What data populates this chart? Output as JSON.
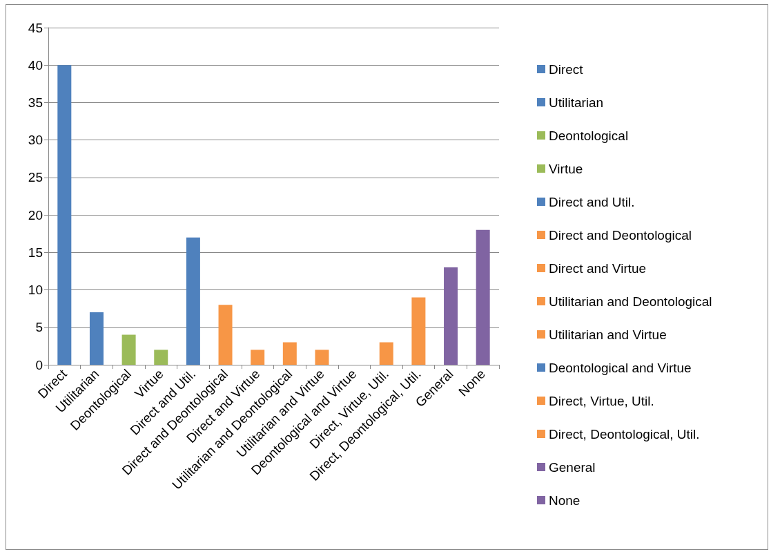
{
  "chart_data": {
    "type": "bar",
    "categories": [
      "Direct",
      "Utilitarian",
      "Deontological",
      "Virtue",
      "Direct and Util.",
      "Direct and Deontological",
      "Direct and Virtue",
      "Utilitarian and Deontological",
      "Utilitarian and Virtue",
      "Deontological and Virtue",
      "Direct, Virtue, Util.",
      "Direct, Deontological, Util.",
      "General",
      "None"
    ],
    "series": [
      {
        "name": "Direct",
        "color": "#4f81bd",
        "values": [
          40,
          null,
          null,
          null,
          null,
          null,
          null,
          null,
          null,
          null,
          null,
          null,
          null,
          null
        ]
      },
      {
        "name": "Utilitarian",
        "color": "#4f81bd",
        "values": [
          null,
          7,
          null,
          null,
          null,
          null,
          null,
          null,
          null,
          null,
          null,
          null,
          null,
          null
        ]
      },
      {
        "name": "Deontological",
        "color": "#9bbb59",
        "values": [
          null,
          null,
          4,
          null,
          null,
          null,
          null,
          null,
          null,
          null,
          null,
          null,
          null,
          null
        ]
      },
      {
        "name": "Virtue",
        "color": "#9bbb59",
        "values": [
          null,
          null,
          null,
          2,
          null,
          null,
          null,
          null,
          null,
          null,
          null,
          null,
          null,
          null
        ]
      },
      {
        "name": "Direct and Util.",
        "color": "#4f81bd",
        "values": [
          null,
          null,
          null,
          null,
          17,
          null,
          null,
          null,
          null,
          null,
          null,
          null,
          null,
          null
        ]
      },
      {
        "name": "Direct and Deontological",
        "color": "#f79646",
        "values": [
          null,
          null,
          null,
          null,
          null,
          8,
          null,
          null,
          null,
          null,
          null,
          null,
          null,
          null
        ]
      },
      {
        "name": "Direct and Virtue",
        "color": "#f79646",
        "values": [
          null,
          null,
          null,
          null,
          null,
          null,
          2,
          null,
          null,
          null,
          null,
          null,
          null,
          null
        ]
      },
      {
        "name": "Utilitarian and Deontological",
        "color": "#f79646",
        "values": [
          null,
          null,
          null,
          null,
          null,
          null,
          null,
          3,
          null,
          null,
          null,
          null,
          null,
          null
        ]
      },
      {
        "name": "Utilitarian and Virtue",
        "color": "#f79646",
        "values": [
          null,
          null,
          null,
          null,
          null,
          null,
          null,
          null,
          2,
          null,
          null,
          null,
          null,
          null
        ]
      },
      {
        "name": "Deontological and Virtue",
        "color": "#4f81bd",
        "values": [
          null,
          null,
          null,
          null,
          null,
          null,
          null,
          null,
          null,
          0,
          null,
          null,
          null,
          null
        ]
      },
      {
        "name": "Direct, Virtue, Util.",
        "color": "#f79646",
        "values": [
          null,
          null,
          null,
          null,
          null,
          null,
          null,
          null,
          null,
          null,
          3,
          null,
          null,
          null
        ]
      },
      {
        "name": "Direct, Deontological, Util.",
        "color": "#f79646",
        "values": [
          null,
          null,
          null,
          null,
          null,
          null,
          null,
          null,
          null,
          null,
          null,
          9,
          null,
          null
        ]
      },
      {
        "name": "General",
        "color": "#8064a2",
        "values": [
          null,
          null,
          null,
          null,
          null,
          null,
          null,
          null,
          null,
          null,
          null,
          null,
          13,
          null
        ]
      },
      {
        "name": "None",
        "color": "#8064a2",
        "values": [
          null,
          null,
          null,
          null,
          null,
          null,
          null,
          null,
          null,
          null,
          null,
          null,
          null,
          18
        ]
      }
    ],
    "ylim": [
      0,
      45
    ],
    "yticks": [
      0,
      5,
      10,
      15,
      20,
      25,
      30,
      35,
      40,
      45
    ],
    "grid": "y",
    "legend": "right"
  }
}
